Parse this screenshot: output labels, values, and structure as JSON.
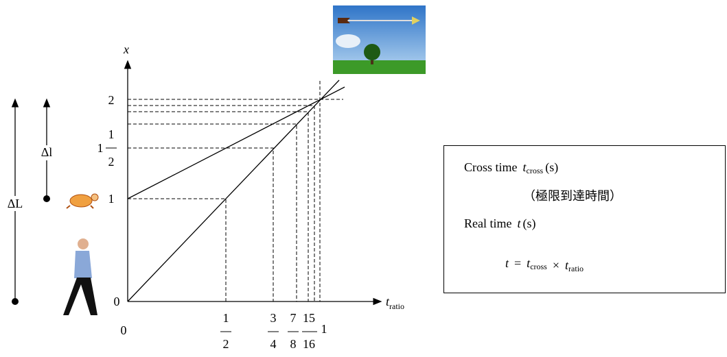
{
  "axis": {
    "y_label": "x",
    "x_label_main": "t",
    "x_label_sub": "ratio"
  },
  "y_ticks": [
    {
      "label": "0"
    },
    {
      "label": "1"
    },
    {
      "whole": "1",
      "numerator": "1",
      "denominator": "2"
    },
    {
      "label": "2"
    }
  ],
  "x_ticks": [
    {
      "label": "0"
    },
    {
      "numerator": "1",
      "denominator": "2"
    },
    {
      "numerator": "3",
      "denominator": "4"
    },
    {
      "numerator": "7",
      "denominator": "8"
    },
    {
      "numerator": "15",
      "denominator": "16"
    },
    {
      "label": "1"
    }
  ],
  "left_labels": {
    "big": "ΔL",
    "small": "Δl"
  },
  "box": {
    "cross_text": "Cross time",
    "cross_var": "t",
    "cross_sub": "cross",
    "cross_unit": "(s)",
    "note": "（極限到達時間）",
    "real_text": "Real time",
    "real_var": "t",
    "real_unit": "(s)",
    "formula": [
      {
        "text": "t"
      },
      {
        "text": "="
      },
      {
        "text": "t",
        "sub": "cross"
      },
      {
        "text": "×"
      },
      {
        "text": "t",
        "sub": "ratio"
      }
    ]
  }
}
